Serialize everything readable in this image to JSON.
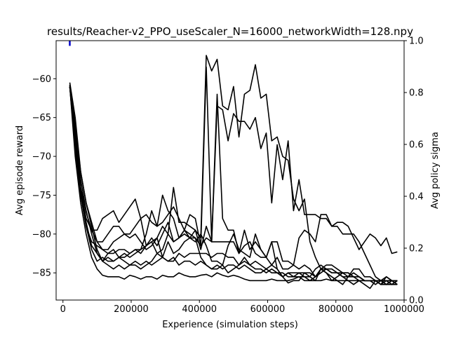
{
  "chart_data": {
    "type": "line",
    "title": "results/Reacher-v2_PPO_useScaler_N=16000_networkWidth=128.npy",
    "xlabel": "Experience (simulation steps)",
    "ylabel": "Avg episode reward",
    "y2label": "Avg policy sigma",
    "xlim": [
      -20000,
      1000000
    ],
    "ylim": [
      -88.5,
      -55.1
    ],
    "y2lim": [
      0,
      1.0
    ],
    "x_ticks": [
      0,
      200000,
      400000,
      600000,
      800000,
      1000000
    ],
    "y_ticks": [
      -60,
      -65,
      -70,
      -75,
      -80,
      -85
    ],
    "y2_ticks": [
      0.0,
      0.2,
      0.4,
      0.6,
      0.8,
      1.0
    ],
    "grid": false,
    "legend": "none",
    "colors": {
      "reward": "#000000",
      "sigma": "#0000cc",
      "sigma_label": "#0000cc"
    },
    "x": [
      20000,
      36000,
      52000,
      68000,
      84000,
      100000,
      116000,
      132000,
      148000,
      164000,
      180000,
      196000,
      212000,
      228000,
      244000,
      260000,
      276000,
      292000,
      308000,
      324000,
      340000,
      356000,
      372000,
      388000,
      404000,
      420000,
      436000,
      452000,
      468000,
      484000,
      500000,
      516000,
      532000,
      548000,
      564000,
      580000,
      596000,
      612000,
      628000,
      644000,
      660000,
      676000,
      692000,
      708000,
      724000,
      740000,
      756000,
      772000,
      788000,
      804000,
      820000,
      836000,
      852000,
      868000,
      884000,
      900000,
      916000,
      932000,
      948000,
      964000,
      980000
    ],
    "series": [
      {
        "values": [
          -60.8,
          -67,
          -74,
          -77.2,
          -79.5,
          -79.5,
          -78,
          -77.5,
          -77,
          -78.5,
          -77.5,
          -76.5,
          -75.5,
          -78,
          -81.5,
          -80.5,
          -81.5,
          -80,
          -78.5,
          -81,
          -80.5,
          -79.5,
          -77.5,
          -78,
          -81.5,
          -58.5,
          -81,
          -62,
          -78,
          -79.5,
          -79.5,
          -82.5,
          -79.5,
          -82,
          -81,
          -82,
          -83,
          -81,
          -81,
          -83.5,
          -83.5,
          -84,
          -84.5,
          -84,
          -84.5,
          -85.5,
          -84.5,
          -85,
          -86,
          -85.5,
          -85,
          -85,
          -85.5,
          -86,
          -86,
          -86,
          -86,
          -86,
          -86.5,
          -86,
          -86
        ]
      },
      {
        "values": [
          -60.8,
          -66,
          -72,
          -76,
          -78.5,
          -81,
          -81,
          -80,
          -79,
          -79,
          -80,
          -80.5,
          -80,
          -81,
          -82,
          -81.5,
          -80.5,
          -79,
          -80,
          -74,
          -78.5,
          -78.5,
          -79,
          -79.5,
          -80.5,
          -57,
          -59,
          -57.5,
          -63.5,
          -64,
          -61,
          -67.5,
          -62,
          -61.5,
          -58.2,
          -62.5,
          -62,
          -68,
          -67.5,
          -70,
          -70.5,
          -75.5,
          -77,
          -75.5,
          -81,
          -83,
          -84.5,
          -84,
          -84,
          -84.5,
          -85,
          -85.5,
          -85,
          -85.5,
          -86,
          -86,
          -86,
          -86.5,
          -85.5,
          -86,
          -86.5
        ]
      },
      {
        "values": [
          -60.5,
          -65,
          -72,
          -76,
          -79,
          -82,
          -83.5,
          -82.5,
          -82,
          -83,
          -83,
          -82.5,
          -82,
          -82.5,
          -81.5,
          -81,
          -80.5,
          -83,
          -81,
          -82.5,
          -82,
          -81,
          -80.5,
          -79.5,
          -82,
          -79,
          -81,
          -63.5,
          -64,
          -68,
          -64.5,
          -65.5,
          -65.5,
          -66.5,
          -65,
          -69,
          -67,
          -76,
          -68.5,
          -73,
          -68,
          -77,
          -73,
          -77.5,
          -77.5,
          -77.5,
          -78,
          -78,
          -79,
          -78.5,
          -78.5,
          -79,
          -80.5,
          -82,
          -81,
          -80,
          -80.5,
          -81.5,
          -80.5,
          -82.5,
          -82.3
        ]
      },
      {
        "values": [
          -61,
          -68,
          -74.5,
          -78.5,
          -81.5,
          -82.5,
          -83.5,
          -83,
          -83.5,
          -83,
          -82.5,
          -83,
          -82.5,
          -82,
          -81.5,
          -81,
          -82.5,
          -82,
          -80,
          -81,
          -80.5,
          -79.5,
          -80,
          -80.5,
          -81.5,
          -80.5,
          -81,
          -81,
          -81,
          -81,
          -81,
          -82.5,
          -81.5,
          -81,
          -82.5,
          -83,
          -83,
          -84,
          -83,
          -84.5,
          -84.5,
          -84,
          -80.5,
          -79.5,
          -80,
          -81,
          -77.5,
          -77.5,
          -79,
          -79,
          -80,
          -80,
          -80,
          -81,
          -82.5,
          -84,
          -85.5,
          -86,
          -85.5,
          -86,
          -86.5
        ]
      },
      {
        "values": [
          -61,
          -67,
          -73,
          -77,
          -80,
          -82.5,
          -83.5,
          -84,
          -84.5,
          -84,
          -84.5,
          -84,
          -84,
          -84.5,
          -84,
          -83.5,
          -82.5,
          -83,
          -83.5,
          -83.5,
          -82.5,
          -83,
          -82.5,
          -82.5,
          -82.5,
          -82.5,
          -83,
          -82.5,
          -82.5,
          -83,
          -83,
          -84,
          -83.5,
          -84,
          -83.5,
          -84,
          -84.5,
          -84,
          -84.5,
          -85.5,
          -85,
          -85,
          -85,
          -85,
          -85,
          -85.5,
          -85,
          -84.5,
          -85,
          -85,
          -85.5,
          -85.5,
          -85.5,
          -85.5,
          -86,
          -86,
          -86,
          -86.5,
          -86.5,
          -86.5,
          -86
        ]
      },
      {
        "values": [
          -61,
          -69,
          -75,
          -79,
          -82,
          -83.5,
          -83,
          -83.5,
          -83.5,
          -83,
          -83.5,
          -84,
          -83.5,
          -84,
          -83.5,
          -84,
          -83.5,
          -83,
          -83.5,
          -83,
          -84,
          -83.5,
          -83.5,
          -84,
          -83.5,
          -84,
          -84.5,
          -84,
          -84.5,
          -84,
          -84,
          -84.5,
          -84,
          -84.5,
          -85,
          -85,
          -84.5,
          -85,
          -85,
          -85.5,
          -85,
          -85.5,
          -85,
          -85.5,
          -85.5,
          -84.5,
          -84,
          -84.5,
          -85,
          -85,
          -85,
          -85,
          -85.5,
          -85.5,
          -86,
          -86,
          -86.5,
          -86,
          -86,
          -86.5,
          -86
        ]
      },
      {
        "values": [
          -61,
          -70,
          -76,
          -80,
          -83,
          -84.5,
          -85.3,
          -85.5,
          -85.5,
          -85.5,
          -85.8,
          -85.3,
          -85.5,
          -85.8,
          -85.5,
          -85.5,
          -85.8,
          -85.3,
          -85.5,
          -85.5,
          -85,
          -85.3,
          -85.5,
          -85.5,
          -85.3,
          -85.2,
          -85.5,
          -85,
          -85.3,
          -85.5,
          -85.3,
          -85.5,
          -85.8,
          -86,
          -86,
          -86,
          -86,
          -85.8,
          -86,
          -86,
          -86,
          -85.8,
          -85.5,
          -85.5,
          -86,
          -86,
          -86,
          -85.8,
          -86,
          -86,
          -86,
          -86,
          -86,
          -86,
          -86,
          -86,
          -86,
          -86,
          -86,
          -86,
          -86
        ]
      },
      {
        "values": [
          -61,
          -68,
          -74.5,
          -78,
          -79.5,
          -81,
          -82,
          -82,
          -81,
          -80.5,
          -80,
          -80,
          -79,
          -78,
          -77.5,
          -78.5,
          -79,
          -78.5,
          -77.5,
          -76.5,
          -78,
          -79.5,
          -80.5,
          -81,
          -80,
          -81.5,
          -83.5,
          -83.5,
          -84,
          -81.5,
          -80,
          -82,
          -82.5,
          -83,
          -80,
          -82,
          -83,
          -81,
          -84.5,
          -85.5,
          -86.3,
          -86,
          -86,
          -85,
          -85.5,
          -86,
          -84.5,
          -85,
          -85.5,
          -86,
          -86.5,
          -85.5,
          -84.5,
          -84.5,
          -85.5,
          -85.5,
          -86,
          -86.5,
          -86,
          -86.5,
          -86.5
        ]
      },
      {
        "values": [
          -61,
          -69,
          -75,
          -79,
          -81,
          -81.5,
          -82,
          -82.5,
          -82.5,
          -82,
          -82,
          -82.5,
          -82,
          -82,
          -80,
          -77,
          -79,
          -75,
          -77,
          -78,
          -80.5,
          -80,
          -80.5,
          -80.5,
          -83,
          -84,
          -84.5,
          -84.5,
          -84,
          -85,
          -84.5,
          -84,
          -83,
          -84,
          -84.5,
          -84.5,
          -85,
          -84.5,
          -85,
          -85,
          -85.5,
          -85.5,
          -85.5,
          -86,
          -86,
          -85.5,
          -84.5,
          -84.5,
          -84.5,
          -85,
          -85.5,
          -86,
          -86.5,
          -86,
          -86.5,
          -87,
          -86,
          -86,
          -86.5,
          -86,
          -86
        ]
      }
    ],
    "sigma_series": {
      "name": "Avg policy sigma",
      "x": [
        20000,
        20000
      ],
      "values": [
        0.98,
        1.0
      ]
    }
  }
}
